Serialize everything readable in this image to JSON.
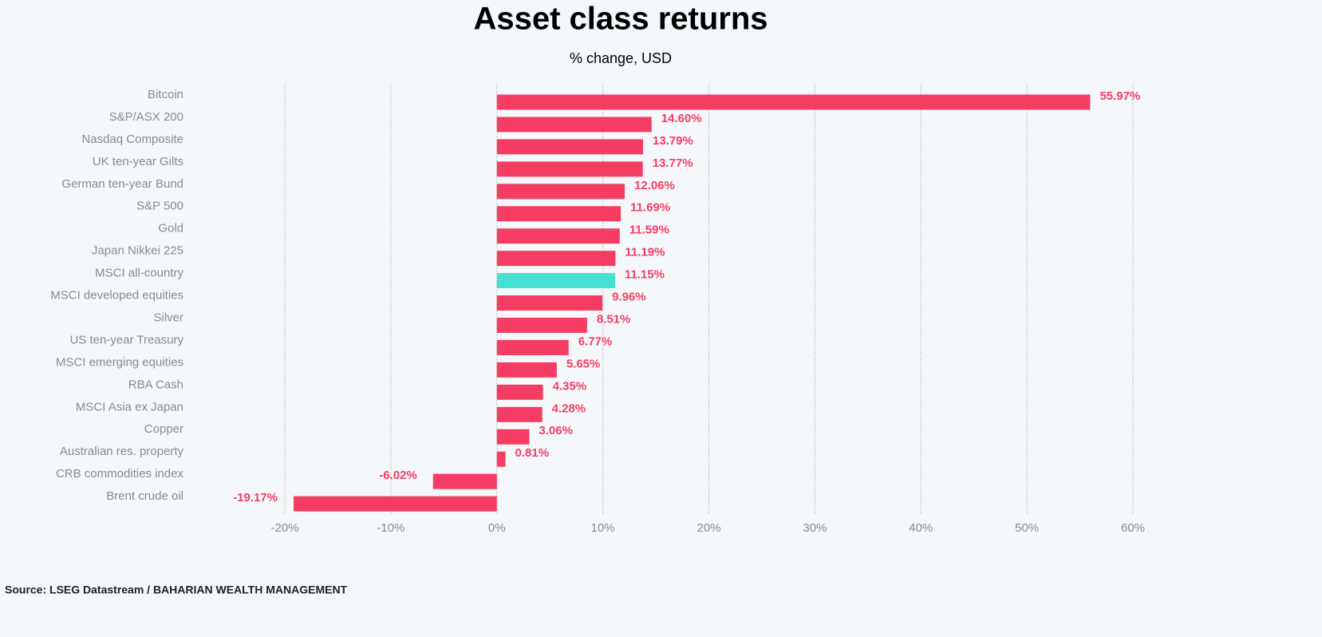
{
  "chart_data": {
    "type": "hbar",
    "title": "Asset class returns",
    "subtitle": "% change, USD",
    "source": "Source: LSEG Datastream / BAHARIAN WEALTH MANAGEMENT",
    "categories": [
      "Bitcoin",
      "S&P/ASX 200",
      "Nasdaq Composite",
      "UK ten-year Gilts",
      "German ten-year Bund",
      "S&P 500",
      "Gold",
      "Japan Nikkei 225",
      "MSCI all-country",
      "MSCI developed equities",
      "Silver",
      "US ten-year Treasury",
      "MSCI emerging equities",
      "RBA Cash",
      "MSCI Asia ex Japan",
      "Copper",
      "Australian res. property",
      "CRB commodities index",
      "Brent crude oil"
    ],
    "values": [
      55.97,
      14.6,
      13.79,
      13.77,
      12.06,
      11.69,
      11.59,
      11.19,
      11.15,
      9.96,
      8.51,
      6.77,
      5.65,
      4.35,
      4.28,
      3.06,
      0.81,
      -6.02,
      -19.17
    ],
    "value_labels": [
      "55.97%",
      "14.60%",
      "13.79%",
      "13.77%",
      "12.06%",
      "11.69%",
      "11.59%",
      "11.19%",
      "11.15%",
      "9.96%",
      "8.51%",
      "6.77%",
      "5.65%",
      "4.35%",
      "4.28%",
      "3.06%",
      "0.81%",
      "-6.02%",
      "-19.17%"
    ],
    "colors": [
      "#f53d63",
      "#f53d63",
      "#f53d63",
      "#f53d63",
      "#f53d63",
      "#f53d63",
      "#f53d63",
      "#f53d63",
      "#45e0d4",
      "#f53d63",
      "#f53d63",
      "#f53d63",
      "#f53d63",
      "#f53d63",
      "#f53d63",
      "#f53d63",
      "#f53d63",
      "#f53d63",
      "#f53d63"
    ],
    "xlim": [
      -20,
      60
    ],
    "xticks": [
      {
        "value": -20,
        "label": "-20%"
      },
      {
        "value": -10,
        "label": "-10%"
      },
      {
        "value": 0,
        "label": "0%"
      },
      {
        "value": 10,
        "label": "10%"
      },
      {
        "value": 20,
        "label": "20%"
      },
      {
        "value": 30,
        "label": "30%"
      },
      {
        "value": 40,
        "label": "40%"
      },
      {
        "value": 50,
        "label": "50%"
      },
      {
        "value": 60,
        "label": "60%"
      }
    ],
    "grid": true
  }
}
